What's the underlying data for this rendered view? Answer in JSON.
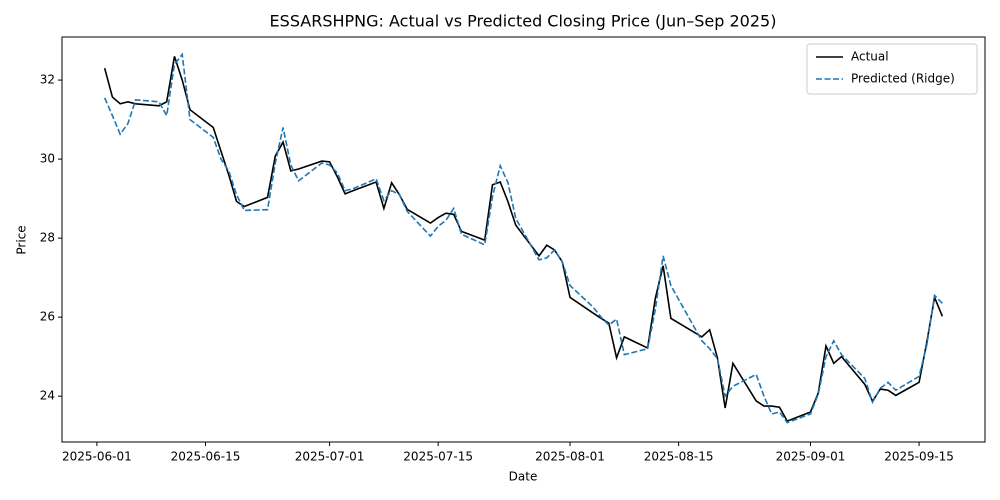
{
  "chart_data": {
    "type": "line",
    "title": "ESSARSHPNG: Actual vs Predicted Closing Price (Jun–Sep 2025)",
    "xlabel": "Date",
    "ylabel": "Price",
    "x": [
      "2025-06-02",
      "2025-06-03",
      "2025-06-04",
      "2025-06-05",
      "2025-06-06",
      "2025-06-09",
      "2025-06-10",
      "2025-06-11",
      "2025-06-12",
      "2025-06-13",
      "2025-06-16",
      "2025-06-17",
      "2025-06-18",
      "2025-06-19",
      "2025-06-20",
      "2025-06-23",
      "2025-06-24",
      "2025-06-25",
      "2025-06-26",
      "2025-06-27",
      "2025-06-30",
      "2025-07-01",
      "2025-07-02",
      "2025-07-03",
      "2025-07-04",
      "2025-07-07",
      "2025-07-08",
      "2025-07-09",
      "2025-07-10",
      "2025-07-11",
      "2025-07-14",
      "2025-07-15",
      "2025-07-16",
      "2025-07-17",
      "2025-07-18",
      "2025-07-21",
      "2025-07-22",
      "2025-07-23",
      "2025-07-24",
      "2025-07-25",
      "2025-07-28",
      "2025-07-29",
      "2025-07-30",
      "2025-07-31",
      "2025-08-01",
      "2025-08-04",
      "2025-08-05",
      "2025-08-06",
      "2025-08-07",
      "2025-08-08",
      "2025-08-11",
      "2025-08-12",
      "2025-08-13",
      "2025-08-14",
      "2025-08-18",
      "2025-08-19",
      "2025-08-20",
      "2025-08-21",
      "2025-08-22",
      "2025-08-25",
      "2025-08-26",
      "2025-08-27",
      "2025-08-28",
      "2025-08-29",
      "2025-09-01",
      "2025-09-02",
      "2025-09-03",
      "2025-09-04",
      "2025-09-05",
      "2025-09-08",
      "2025-09-09",
      "2025-09-10",
      "2025-09-11",
      "2025-09-12",
      "2025-09-15",
      "2025-09-16",
      "2025-09-17",
      "2025-09-18"
    ],
    "series": [
      {
        "name": "Actual",
        "color": "#000000",
        "dash": "solid",
        "values": [
          32.3,
          31.57,
          31.4,
          31.45,
          31.4,
          31.35,
          31.45,
          32.6,
          32.0,
          31.25,
          30.8,
          30.2,
          29.6,
          28.93,
          28.8,
          29.03,
          30.08,
          30.43,
          29.7,
          29.75,
          29.95,
          29.93,
          29.55,
          29.12,
          29.2,
          29.42,
          28.75,
          29.4,
          29.1,
          28.73,
          28.38,
          28.52,
          28.63,
          28.6,
          28.17,
          27.95,
          29.35,
          29.42,
          28.92,
          28.33,
          27.55,
          27.82,
          27.7,
          27.4,
          26.5,
          26.1,
          25.97,
          25.85,
          24.97,
          25.5,
          25.22,
          26.48,
          27.3,
          25.97,
          25.5,
          25.68,
          24.97,
          23.7,
          24.83,
          23.88,
          23.75,
          23.75,
          23.72,
          23.37,
          23.6,
          24.08,
          25.27,
          24.83,
          25.0,
          24.3,
          23.87,
          24.18,
          24.15,
          24.02,
          24.35,
          25.37,
          26.5,
          26.02
        ]
      },
      {
        "name": "Predicted (Ridge)",
        "color": "#1f77b4",
        "dash": "dashed",
        "values": [
          31.55,
          31.1,
          30.63,
          30.9,
          31.5,
          31.45,
          31.1,
          32.4,
          32.65,
          31.0,
          30.55,
          30.0,
          29.7,
          29.1,
          28.7,
          28.72,
          29.9,
          30.8,
          29.85,
          29.45,
          29.9,
          29.85,
          29.65,
          29.2,
          29.25,
          29.5,
          28.95,
          29.2,
          29.1,
          28.68,
          28.05,
          28.3,
          28.45,
          28.75,
          28.1,
          27.83,
          29.05,
          29.83,
          29.4,
          28.5,
          27.45,
          27.5,
          27.7,
          27.4,
          26.8,
          26.25,
          26.0,
          25.8,
          25.95,
          25.05,
          25.2,
          26.2,
          27.55,
          26.8,
          25.4,
          25.2,
          24.95,
          24.0,
          24.25,
          24.55,
          24.0,
          23.55,
          23.6,
          23.33,
          23.55,
          24.05,
          25.0,
          25.4,
          25.05,
          24.45,
          23.85,
          24.2,
          24.35,
          24.15,
          24.5,
          25.3,
          26.55,
          26.35
        ]
      }
    ],
    "xlim": [
      "2025-05-27T12:00:00Z",
      "2025-09-23T12:00:00Z"
    ],
    "xticks": [
      "2025-06-01",
      "2025-06-15",
      "2025-07-01",
      "2025-07-15",
      "2025-08-01",
      "2025-08-15",
      "2025-09-01",
      "2025-09-15"
    ],
    "ylim": [
      22.84,
      33.09
    ],
    "yticks": [
      24,
      26,
      28,
      30,
      32
    ],
    "grid": false,
    "legend": "upper right"
  }
}
